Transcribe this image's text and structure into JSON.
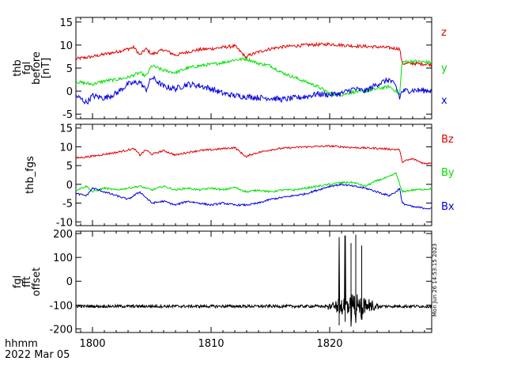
{
  "colors": {
    "red": "#e00000",
    "green": "#00e000",
    "blue": "#0000e0",
    "black": "#000000"
  },
  "footer": {
    "time_format": "hhmm",
    "date": "2022 Mar 05"
  },
  "timestamp": "Mon Jun 26 14:53:15 2023",
  "chart_data": [
    {
      "type": "line",
      "panel": "thb_fgl_before",
      "ylabel": [
        "thb",
        "fgl",
        "before",
        "[nT]"
      ],
      "xlim": [
        1798.6,
        1828.6
      ],
      "ylim": [
        -6,
        16
      ],
      "yticks": [
        -5,
        0,
        5,
        10,
        15
      ],
      "series": [
        {
          "name": "z",
          "color": "red",
          "x": [
            1798.6,
            1800,
            1802,
            1803.5,
            1804,
            1804.5,
            1805,
            1806,
            1807,
            1808,
            1809,
            1810,
            1811,
            1812,
            1813,
            1813.2,
            1814,
            1815,
            1816,
            1818,
            1820,
            1822,
            1824,
            1825.5,
            1825.9,
            1826.1,
            1827,
            1828.6
          ],
          "y": [
            7,
            7.5,
            8.5,
            9.5,
            7.8,
            9.2,
            8,
            9,
            7.8,
            8.5,
            9,
            9.2,
            9.5,
            9.8,
            7.2,
            7.8,
            8.5,
            9.2,
            9.6,
            10,
            10.2,
            9.8,
            9.6,
            9.3,
            9.2,
            6,
            6,
            5.8
          ]
        },
        {
          "name": "y",
          "color": "green",
          "x": [
            1798.6,
            1800,
            1801,
            1802,
            1803,
            1804,
            1804.5,
            1805,
            1806,
            1807,
            1808,
            1809,
            1810,
            1811,
            1812,
            1813,
            1814,
            1815,
            1816,
            1817,
            1818,
            1819,
            1820,
            1821,
            1822,
            1823,
            1824,
            1825,
            1825.6,
            1825.9,
            1826.1,
            1827,
            1828.6
          ],
          "y": [
            2,
            1.5,
            2.2,
            2.5,
            3,
            4,
            3.2,
            5.5,
            4.5,
            4,
            5,
            5.5,
            5.8,
            6.2,
            6.8,
            7,
            6,
            5.5,
            4,
            3,
            2,
            1,
            -0.5,
            -0.8,
            -0.2,
            0,
            0.5,
            1,
            0,
            -0.8,
            6.3,
            6.5,
            6.2
          ]
        },
        {
          "name": "x",
          "color": "blue",
          "x": [
            1798.6,
            1799.5,
            1800,
            1801,
            1802,
            1803,
            1804,
            1804.5,
            1805,
            1806,
            1807,
            1808,
            1809,
            1810,
            1811,
            1812,
            1813,
            1814,
            1815,
            1816,
            1817,
            1818,
            1819,
            1820,
            1821,
            1822,
            1823,
            1824,
            1825,
            1825.6,
            1825.9,
            1826.1,
            1827,
            1828.6
          ],
          "y": [
            -1,
            -2.5,
            -1,
            -1.5,
            -0.5,
            1.5,
            2,
            0.2,
            3,
            1,
            0.5,
            1.5,
            1.2,
            0.5,
            -0.5,
            -1,
            -1.2,
            -1.4,
            -1.5,
            -1.8,
            -1.5,
            -1.2,
            -0.6,
            -0.8,
            -0.5,
            0.5,
            0,
            1.5,
            2.5,
            1,
            -1.5,
            0,
            0.2,
            0.1
          ]
        }
      ]
    },
    {
      "type": "line",
      "panel": "thb_fgs",
      "ylabel": [
        "thb_fgs"
      ],
      "xlim": [
        1798.6,
        1828.6
      ],
      "ylim": [
        -11,
        16
      ],
      "yticks": [
        -10,
        -5,
        0,
        5,
        10,
        15
      ],
      "series": [
        {
          "name": "Bz",
          "color": "red",
          "x": [
            1798.6,
            1800,
            1802,
            1803.5,
            1804,
            1804.5,
            1805,
            1806,
            1807,
            1808,
            1809,
            1810,
            1811,
            1812,
            1813,
            1813.2,
            1814,
            1815,
            1816,
            1818,
            1820,
            1822,
            1824,
            1825.5,
            1825.9,
            1826.1,
            1827,
            1828,
            1828.6
          ],
          "y": [
            7,
            7.5,
            8.5,
            9.5,
            7.8,
            9.2,
            8,
            9,
            7.8,
            8.5,
            9,
            9.2,
            9.5,
            9.8,
            7.2,
            7.8,
            8.5,
            9.2,
            9.6,
            10,
            10.2,
            9.8,
            9.6,
            9.3,
            9.2,
            6,
            6.8,
            5.5,
            5.8
          ]
        },
        {
          "name": "By",
          "color": "green",
          "x": [
            1798.6,
            1799.5,
            1800,
            1801,
            1802,
            1803,
            1804,
            1805,
            1806,
            1807,
            1808,
            1809,
            1810,
            1811,
            1812,
            1813,
            1814,
            1815,
            1816,
            1817,
            1818,
            1819,
            1820,
            1821,
            1822,
            1823,
            1824,
            1825,
            1825.6,
            1825.9,
            1826.1,
            1827,
            1828.6
          ],
          "y": [
            -1.5,
            -0.5,
            -2,
            -1,
            -1.5,
            -1,
            -0.5,
            -1.5,
            -0.5,
            -1.5,
            -1,
            -1.5,
            -1,
            -1.5,
            -0.8,
            -2,
            -1.5,
            -2,
            -1.5,
            -1.5,
            -1,
            -0.5,
            0,
            0.5,
            0.5,
            -0.5,
            1,
            2,
            3,
            0,
            -2,
            -1.5,
            -1.2
          ]
        },
        {
          "name": "Bx",
          "color": "blue",
          "x": [
            1798.6,
            1799.5,
            1800,
            1801,
            1802,
            1803,
            1804,
            1805,
            1806,
            1807,
            1808,
            1809,
            1810,
            1811,
            1812,
            1813,
            1814,
            1815,
            1816,
            1817,
            1818,
            1819,
            1820,
            1821,
            1822,
            1823,
            1824,
            1825,
            1825.6,
            1825.9,
            1826.1,
            1827,
            1828.6
          ],
          "y": [
            -2.5,
            -3,
            -1,
            -2,
            -3,
            -4,
            -2,
            -5,
            -4.5,
            -5.5,
            -4.5,
            -5,
            -5.5,
            -5,
            -5.5,
            -5.5,
            -5,
            -4,
            -3.5,
            -3,
            -2.5,
            -1.5,
            -0.5,
            0,
            -0.5,
            -1,
            -2,
            -3,
            -2,
            -1,
            -5,
            -6,
            -6.5
          ]
        }
      ]
    },
    {
      "type": "line",
      "panel": "fgl_fft_offset",
      "ylabel": [
        "fgl",
        "fft",
        "offset"
      ],
      "xlim": [
        1798.6,
        1828.6
      ],
      "ylim": [
        -215,
        210
      ],
      "yticks": [
        -200,
        -100,
        0,
        100,
        200
      ],
      "xticks": [
        1800,
        1810,
        1820
      ],
      "series": [
        {
          "name": "offset",
          "color": "black",
          "baseline": -105,
          "noise": 6,
          "burst_region": [
            1819.5,
            1824.5
          ],
          "spikes": [
            {
              "x": 1820.8,
              "ymax": 185,
              "ymin": -185
            },
            {
              "x": 1821.3,
              "ymax": 190,
              "ymin": -170
            },
            {
              "x": 1821.8,
              "ymax": 160,
              "ymin": -190
            },
            {
              "x": 1822.2,
              "ymax": 195,
              "ymin": -175
            },
            {
              "x": 1822.7,
              "ymax": 150,
              "ymin": -160
            }
          ]
        }
      ]
    }
  ]
}
